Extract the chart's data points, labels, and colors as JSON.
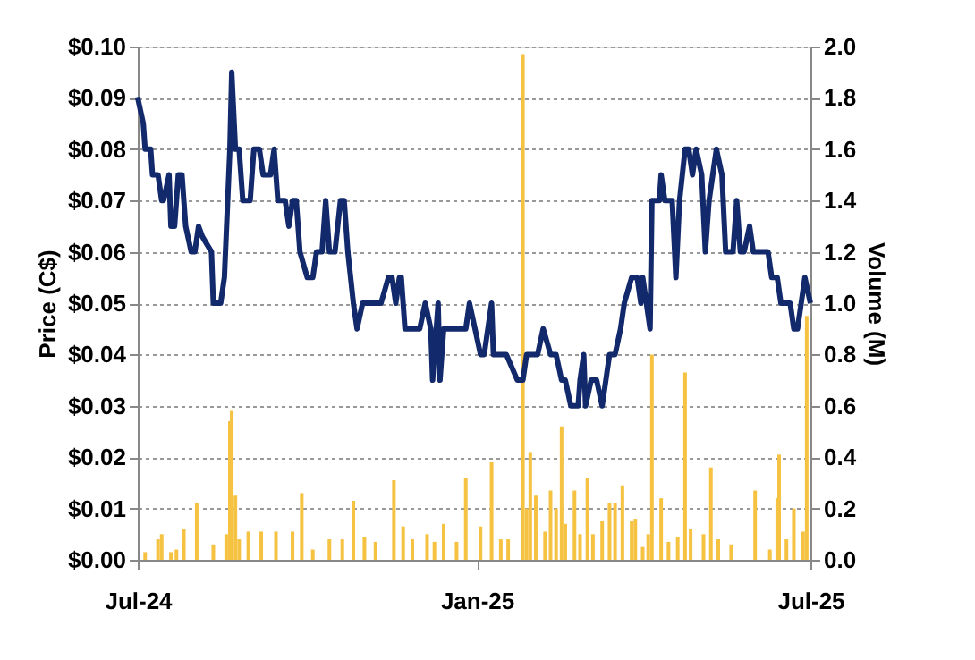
{
  "chart_data": {
    "type": "line",
    "xlabel": null,
    "ylabel": "Price (C$)",
    "y2label": "Volume (M)",
    "grid": "y",
    "line_style": "solid",
    "marker": "none",
    "xlim": [
      "2024-07-01",
      "2025-07-01"
    ],
    "xticks": [
      {
        "value": "2024-07-01",
        "label": "Jul-24"
      },
      {
        "value": "2025-01-01",
        "label": "Jan-25"
      },
      {
        "value": "2025-07-01",
        "label": "Jul-25"
      }
    ],
    "ylim": [
      0,
      0.1
    ],
    "yticks": [
      {
        "value": 0,
        "label": "$0.00"
      },
      {
        "value": 0.01,
        "label": "$0.01"
      },
      {
        "value": 0.02,
        "label": "$0.02"
      },
      {
        "value": 0.03,
        "label": "$0.03"
      },
      {
        "value": 0.04,
        "label": "$0.04"
      },
      {
        "value": 0.05,
        "label": "$0.05"
      },
      {
        "value": 0.06,
        "label": "$0.06"
      },
      {
        "value": 0.07,
        "label": "$0.07"
      },
      {
        "value": 0.08,
        "label": "$0.08"
      },
      {
        "value": 0.09,
        "label": "$0.09"
      },
      {
        "value": 0.1,
        "label": "$0.10"
      }
    ],
    "y2lim": [
      0,
      2
    ],
    "y2ticks": [
      {
        "value": 0,
        "label": "0.0"
      },
      {
        "value": 0.2,
        "label": "0.2"
      },
      {
        "value": 0.4,
        "label": "0.4"
      },
      {
        "value": 0.6,
        "label": "0.6"
      },
      {
        "value": 0.8,
        "label": "0.8"
      },
      {
        "value": 1,
        "label": "1.0"
      },
      {
        "value": 1.2,
        "label": "1.2"
      },
      {
        "value": 1.4,
        "label": "1.4"
      },
      {
        "value": 1.6,
        "label": "1.6"
      },
      {
        "value": 1.8,
        "label": "1.8"
      },
      {
        "value": 2,
        "label": "2.0"
      }
    ],
    "series": [
      {
        "type": "bar",
        "axis": "y2",
        "color": "#f5c242",
        "x": [
          "2024-07-05",
          "2024-07-12",
          "2024-07-14",
          "2024-07-19",
          "2024-07-22",
          "2024-07-26",
          "2024-08-02",
          "2024-08-11",
          "2024-08-18",
          "2024-08-20",
          "2024-08-21",
          "2024-08-23",
          "2024-08-25",
          "2024-08-30",
          "2024-09-06",
          "2024-09-14",
          "2024-09-23",
          "2024-09-28",
          "2024-10-04",
          "2024-10-13",
          "2024-10-20",
          "2024-10-26",
          "2024-11-01",
          "2024-11-07",
          "2024-11-17",
          "2024-11-22",
          "2024-11-27",
          "2024-12-05",
          "2024-12-09",
          "2024-12-14",
          "2024-12-21",
          "2024-12-26",
          "2025-01-03",
          "2025-01-09",
          "2025-01-14",
          "2025-01-18",
          "2025-01-26",
          "2025-01-28",
          "2025-01-30",
          "2025-02-02",
          "2025-02-07",
          "2025-02-10",
          "2025-02-13",
          "2025-02-16",
          "2025-02-18",
          "2025-02-23",
          "2025-02-26",
          "2025-03-02",
          "2025-03-05",
          "2025-03-10",
          "2025-03-14",
          "2025-03-17",
          "2025-03-21",
          "2025-03-26",
          "2025-03-28",
          "2025-04-01",
          "2025-04-04",
          "2025-04-06",
          "2025-04-11",
          "2025-04-15",
          "2025-04-20",
          "2025-04-24",
          "2025-04-27",
          "2025-05-04",
          "2025-05-08",
          "2025-05-12",
          "2025-05-19",
          "2025-06-01",
          "2025-06-09",
          "2025-06-13",
          "2025-06-14",
          "2025-06-18",
          "2025-06-22",
          "2025-06-27",
          "2025-06-29"
        ],
        "values": [
          0.03,
          0.08,
          0.1,
          0.03,
          0.04,
          0.12,
          0.22,
          0.06,
          0.1,
          0.54,
          0.58,
          0.25,
          0.08,
          0.11,
          0.11,
          0.11,
          0.11,
          0.26,
          0.04,
          0.08,
          0.08,
          0.23,
          0.09,
          0.07,
          0.31,
          0.13,
          0.08,
          0.1,
          0.07,
          0.14,
          0.07,
          0.32,
          0.13,
          0.38,
          0.08,
          0.08,
          1.97,
          0.2,
          0.42,
          0.25,
          0.11,
          0.27,
          0.2,
          0.52,
          0.14,
          0.27,
          0.1,
          0.32,
          0.1,
          0.15,
          0.22,
          0.22,
          0.29,
          0.15,
          0.16,
          0.05,
          0.1,
          0.8,
          0.24,
          0.07,
          0.09,
          0.73,
          0.12,
          0.1,
          0.36,
          0.08,
          0.06,
          0.27,
          0.04,
          0.24,
          0.41,
          0.08,
          0.2,
          0.11,
          0.95
        ]
      },
      {
        "axis": "y",
        "color": "#12296b",
        "x": [
          "2024-07-01",
          "2024-07-04",
          "2024-07-05",
          "2024-07-08",
          "2024-07-09",
          "2024-07-12",
          "2024-07-14",
          "2024-07-15",
          "2024-07-18",
          "2024-07-19",
          "2024-07-21",
          "2024-07-23",
          "2024-07-25",
          "2024-07-27",
          "2024-07-30",
          "2024-08-01",
          "2024-08-03",
          "2024-08-05",
          "2024-08-10",
          "2024-08-11",
          "2024-08-15",
          "2024-08-17",
          "2024-08-20",
          "2024-08-21",
          "2024-08-23",
          "2024-08-25",
          "2024-08-27",
          "2024-08-31",
          "2024-09-02",
          "2024-09-05",
          "2024-09-07",
          "2024-09-11",
          "2024-09-13",
          "2024-09-15",
          "2024-09-19",
          "2024-09-21",
          "2024-09-23",
          "2024-09-25",
          "2024-09-27",
          "2024-10-01",
          "2024-10-04",
          "2024-10-06",
          "2024-10-09",
          "2024-10-11",
          "2024-10-13",
          "2024-10-16",
          "2024-10-19",
          "2024-10-21",
          "2024-10-23",
          "2024-10-26",
          "2024-10-28",
          "2024-10-31",
          "2024-11-10",
          "2024-11-14",
          "2024-11-16",
          "2024-11-18",
          "2024-11-20",
          "2024-11-21",
          "2024-11-23",
          "2024-12-01",
          "2024-12-04",
          "2024-12-07",
          "2024-12-08",
          "2024-12-11",
          "2024-12-12",
          "2024-12-14",
          "2024-12-26",
          "2024-12-28",
          "2024-12-31",
          "2025-01-03",
          "2025-01-05",
          "2025-01-09",
          "2025-01-10",
          "2025-01-17",
          "2025-01-23",
          "2025-01-26",
          "2025-01-28",
          "2025-02-03",
          "2025-02-06",
          "2025-02-10",
          "2025-02-13",
          "2025-02-16",
          "2025-02-18",
          "2025-02-21",
          "2025-02-25",
          "2025-02-26",
          "2025-02-28",
          "2025-03-01",
          "2025-03-04",
          "2025-03-07",
          "2025-03-10",
          "2025-03-12",
          "2025-03-14",
          "2025-03-17",
          "2025-03-20",
          "2025-03-22",
          "2025-03-26",
          "2025-03-29",
          "2025-03-31",
          "2025-04-01",
          "2025-04-05",
          "2025-04-06",
          "2025-04-10",
          "2025-04-11",
          "2025-04-13",
          "2025-04-17",
          "2025-04-19",
          "2025-04-21",
          "2025-04-24",
          "2025-04-26",
          "2025-04-28",
          "2025-04-30",
          "2025-05-03",
          "2025-05-05",
          "2025-05-07",
          "2025-05-09",
          "2025-05-11",
          "2025-05-14",
          "2025-05-16",
          "2025-05-20",
          "2025-05-22",
          "2025-05-24",
          "2025-05-26",
          "2025-05-29",
          "2025-05-31",
          "2025-06-03",
          "2025-06-08",
          "2025-06-10",
          "2025-06-13",
          "2025-06-15",
          "2025-06-20",
          "2025-06-22",
          "2025-06-24",
          "2025-06-28",
          "2025-07-01"
        ],
        "values": [
          0.09,
          0.085,
          0.08,
          0.08,
          0.075,
          0.075,
          0.07,
          0.07,
          0.075,
          0.065,
          0.065,
          0.075,
          0.075,
          0.065,
          0.06,
          0.06,
          0.065,
          0.063,
          0.06,
          0.05,
          0.05,
          0.055,
          0.08,
          0.095,
          0.08,
          0.08,
          0.07,
          0.07,
          0.08,
          0.08,
          0.075,
          0.075,
          0.08,
          0.07,
          0.07,
          0.065,
          0.07,
          0.07,
          0.06,
          0.055,
          0.055,
          0.06,
          0.06,
          0.07,
          0.06,
          0.06,
          0.07,
          0.07,
          0.06,
          0.05,
          0.045,
          0.05,
          0.05,
          0.055,
          0.055,
          0.05,
          0.055,
          0.055,
          0.045,
          0.045,
          0.05,
          0.045,
          0.035,
          0.05,
          0.035,
          0.045,
          0.045,
          0.05,
          0.045,
          0.04,
          0.04,
          0.05,
          0.04,
          0.04,
          0.035,
          0.035,
          0.04,
          0.04,
          0.045,
          0.04,
          0.04,
          0.035,
          0.035,
          0.03,
          0.03,
          0.035,
          0.04,
          0.03,
          0.035,
          0.035,
          0.03,
          0.035,
          0.04,
          0.04,
          0.045,
          0.05,
          0.055,
          0.055,
          0.05,
          0.055,
          0.045,
          0.07,
          0.07,
          0.075,
          0.07,
          0.07,
          0.055,
          0.07,
          0.08,
          0.08,
          0.075,
          0.08,
          0.075,
          0.06,
          0.07,
          0.075,
          0.08,
          0.075,
          0.06,
          0.06,
          0.07,
          0.06,
          0.06,
          0.065,
          0.06,
          0.06,
          0.06,
          0.055,
          0.055,
          0.05,
          0.05,
          0.045,
          0.045,
          0.055,
          0.05
        ]
      }
    ]
  }
}
